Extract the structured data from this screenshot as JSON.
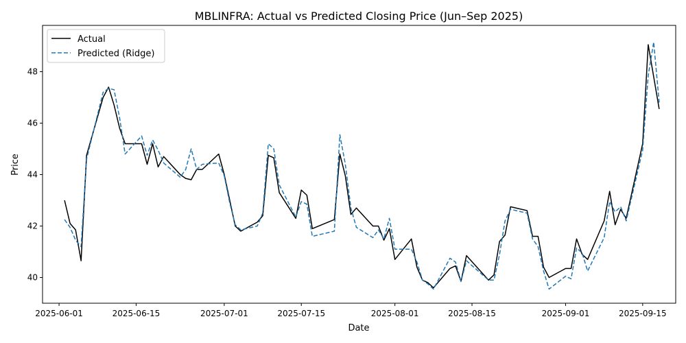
{
  "chart_data": {
    "type": "line",
    "title": "MBLINFRA: Actual vs Predicted Closing Price (Jun–Sep 2025)",
    "xlabel": "Date",
    "ylabel": "Price",
    "legend_position": "top-left",
    "grid": false,
    "xlim": [
      "2025-05-29",
      "2025-09-21"
    ],
    "ylim": [
      39,
      49.8
    ],
    "x_ticks": [
      "2025-06-01",
      "2025-06-15",
      "2025-07-01",
      "2025-07-15",
      "2025-08-01",
      "2025-08-15",
      "2025-09-01",
      "2025-09-15"
    ],
    "y_ticks": [
      40,
      42,
      44,
      46,
      48
    ],
    "colors": {
      "actual": "#000000",
      "predicted": "#1f77b4"
    },
    "x": [
      "2025-06-02",
      "2025-06-03",
      "2025-06-04",
      "2025-06-05",
      "2025-06-06",
      "2025-06-09",
      "2025-06-10",
      "2025-06-11",
      "2025-06-12",
      "2025-06-13",
      "2025-06-16",
      "2025-06-17",
      "2025-06-18",
      "2025-06-19",
      "2025-06-20",
      "2025-06-23",
      "2025-06-24",
      "2025-06-25",
      "2025-06-26",
      "2025-06-27",
      "2025-06-30",
      "2025-07-01",
      "2025-07-02",
      "2025-07-03",
      "2025-07-04",
      "2025-07-07",
      "2025-07-08",
      "2025-07-09",
      "2025-07-10",
      "2025-07-11",
      "2025-07-14",
      "2025-07-15",
      "2025-07-16",
      "2025-07-17",
      "2025-07-21",
      "2025-07-22",
      "2025-07-23",
      "2025-07-24",
      "2025-07-25",
      "2025-07-28",
      "2025-07-29",
      "2025-07-30",
      "2025-07-31",
      "2025-08-01",
      "2025-08-04",
      "2025-08-05",
      "2025-08-06",
      "2025-08-07",
      "2025-08-08",
      "2025-08-11",
      "2025-08-12",
      "2025-08-13",
      "2025-08-14",
      "2025-08-18",
      "2025-08-19",
      "2025-08-20",
      "2025-08-21",
      "2025-08-22",
      "2025-08-25",
      "2025-08-26",
      "2025-08-27",
      "2025-08-28",
      "2025-08-29",
      "2025-09-01",
      "2025-09-02",
      "2025-09-03",
      "2025-09-04",
      "2025-09-05",
      "2025-09-08",
      "2025-09-09",
      "2025-09-10",
      "2025-09-11",
      "2025-09-12",
      "2025-09-15",
      "2025-09-16",
      "2025-09-17",
      "2025-09-18"
    ],
    "series": [
      {
        "name": "Actual",
        "style": "solid",
        "values": [
          43.0,
          42.1,
          41.85,
          40.65,
          44.75,
          47.0,
          47.4,
          46.7,
          45.8,
          45.2,
          45.2,
          44.4,
          45.2,
          44.3,
          44.7,
          44.0,
          43.85,
          43.8,
          44.2,
          44.2,
          44.8,
          44.0,
          43.0,
          42.0,
          41.8,
          42.15,
          42.4,
          44.75,
          44.65,
          43.3,
          42.3,
          43.4,
          43.2,
          41.9,
          42.25,
          44.8,
          43.95,
          42.45,
          42.7,
          42.0,
          42.0,
          41.45,
          41.9,
          40.7,
          41.5,
          40.4,
          39.9,
          39.8,
          39.6,
          40.35,
          40.45,
          39.85,
          40.85,
          39.9,
          40.1,
          41.4,
          41.65,
          42.75,
          42.6,
          41.6,
          41.6,
          40.4,
          40.0,
          40.35,
          40.35,
          41.5,
          40.9,
          40.7,
          42.2,
          43.35,
          42.05,
          42.65,
          42.3,
          45.2,
          49.05,
          47.8,
          46.55
        ]
      },
      {
        "name": "Predicted (Ridge)",
        "style": "dashed",
        "values": [
          42.25,
          41.95,
          41.45,
          41.2,
          44.6,
          47.2,
          47.35,
          47.3,
          46.2,
          44.8,
          45.5,
          44.75,
          45.35,
          44.95,
          44.45,
          43.9,
          44.2,
          45.0,
          44.2,
          44.4,
          44.45,
          43.95,
          42.9,
          42.05,
          41.85,
          42.0,
          42.5,
          45.2,
          45.0,
          43.6,
          42.35,
          42.95,
          42.85,
          41.6,
          41.8,
          45.55,
          44.4,
          42.7,
          41.95,
          41.55,
          41.85,
          41.5,
          42.3,
          41.1,
          41.1,
          40.6,
          39.9,
          39.75,
          39.55,
          40.75,
          40.6,
          39.85,
          40.65,
          39.9,
          39.9,
          40.9,
          42.2,
          42.65,
          42.5,
          41.5,
          41.2,
          40.25,
          39.55,
          40.05,
          39.95,
          41.15,
          40.95,
          40.25,
          41.55,
          42.95,
          42.55,
          42.75,
          42.2,
          44.95,
          47.85,
          49.15,
          46.8
        ]
      }
    ]
  }
}
